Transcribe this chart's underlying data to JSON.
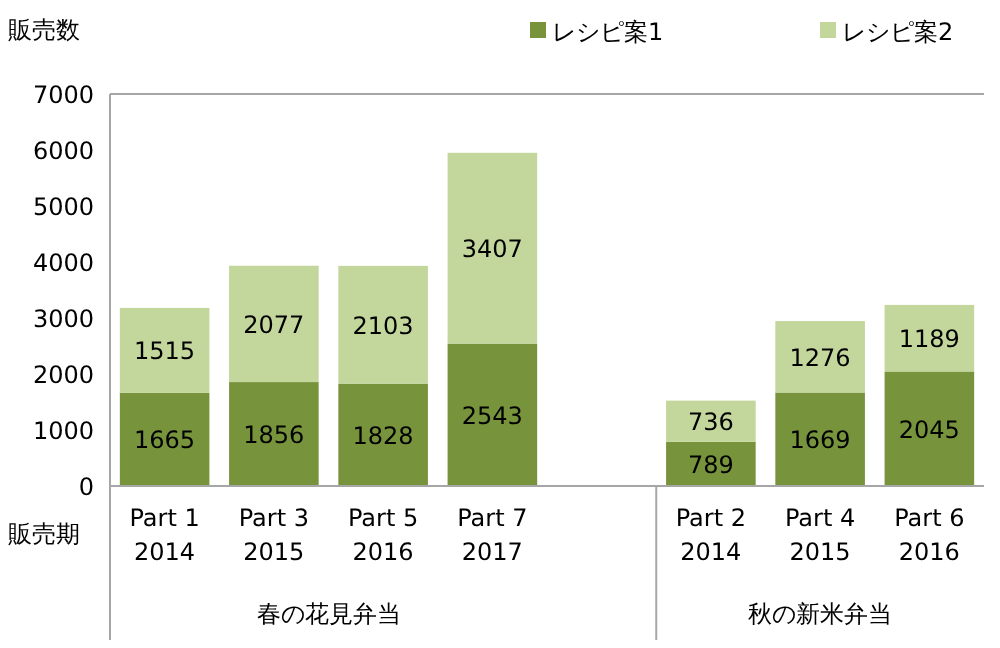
{
  "chart_data": {
    "type": "bar",
    "stacked": true,
    "xlabel": "販売期",
    "ylabel": "販売数",
    "categories": [
      "Part 1\n2014",
      "Part 3\n2015",
      "Part 5\n2016",
      "Part 7\n2017",
      null,
      "Part 2\n2014",
      "Part 4\n2015",
      "Part 6\n2016"
    ],
    "series": [
      {
        "name": "レシピ案1",
        "color": "#77933c",
        "values": [
          1665,
          1856,
          1828,
          2543,
          null,
          789,
          1669,
          2045
        ]
      },
      {
        "name": "レシピ案2",
        "color": "#c3d69b",
        "values": [
          1515,
          2077,
          2103,
          3407,
          null,
          736,
          1276,
          1189
        ]
      }
    ],
    "ylim": [
      0,
      7000
    ],
    "yticks": [
      0,
      1000,
      2000,
      3000,
      4000,
      5000,
      6000,
      7000
    ],
    "data_labels": true,
    "legend": "top right",
    "grid": false,
    "annotations": [
      "春の花見弁当",
      "秋の新米弁当"
    ]
  }
}
